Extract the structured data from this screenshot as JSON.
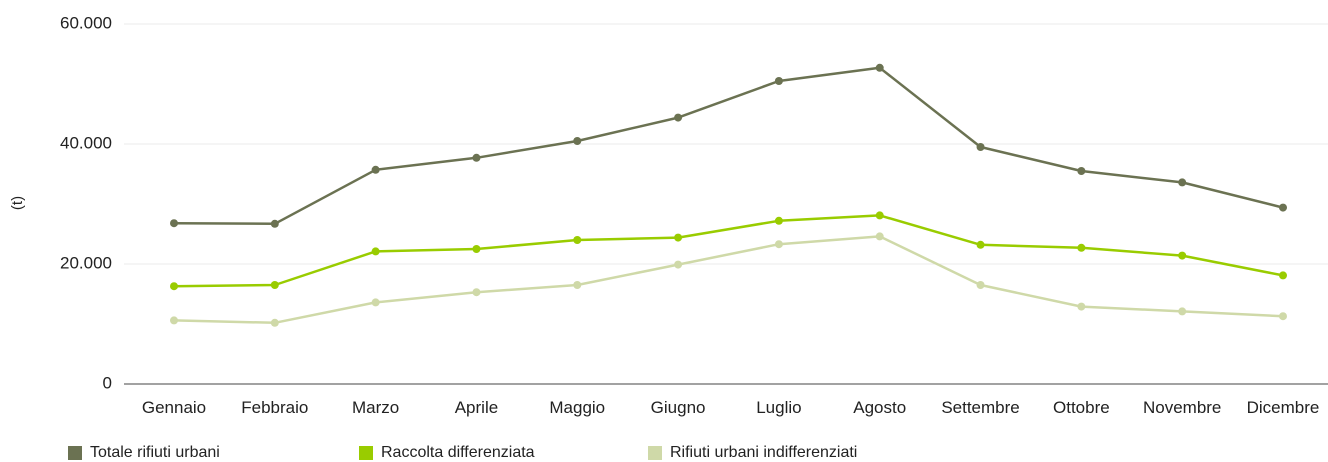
{
  "chart_data": {
    "type": "line",
    "title": "",
    "xlabel": "",
    "ylabel": "(t)",
    "ylim": [
      0,
      60000
    ],
    "yticks": [
      {
        "value": 0,
        "label": "0"
      },
      {
        "value": 20000,
        "label": "20.000"
      },
      {
        "value": 40000,
        "label": "40.000"
      },
      {
        "value": 60000,
        "label": "60.000"
      }
    ],
    "grid": true,
    "legend_position": "bottom-left",
    "categories": [
      "Gennaio",
      "Febbraio",
      "Marzo",
      "Aprile",
      "Maggio",
      "Giugno",
      "Luglio",
      "Agosto",
      "Settembre",
      "Ottobre",
      "Novembre",
      "Dicembre"
    ],
    "series": [
      {
        "name": "Totale rifiuti urbani",
        "color": "#6b7252",
        "values": [
          26800,
          26700,
          35700,
          37700,
          40500,
          44400,
          50500,
          52700,
          39500,
          35500,
          33600,
          29400
        ]
      },
      {
        "name": "Raccolta differenziata",
        "color": "#99cc00",
        "values": [
          16300,
          16500,
          22100,
          22500,
          24000,
          24400,
          27200,
          28100,
          23200,
          22700,
          21400,
          18100
        ]
      },
      {
        "name": "Rifiuti urbani indifferenziati",
        "color": "#cfd9a8",
        "values": [
          10600,
          10200,
          13600,
          15300,
          16500,
          19900,
          23300,
          24600,
          16500,
          12900,
          12100,
          11300
        ]
      }
    ]
  }
}
